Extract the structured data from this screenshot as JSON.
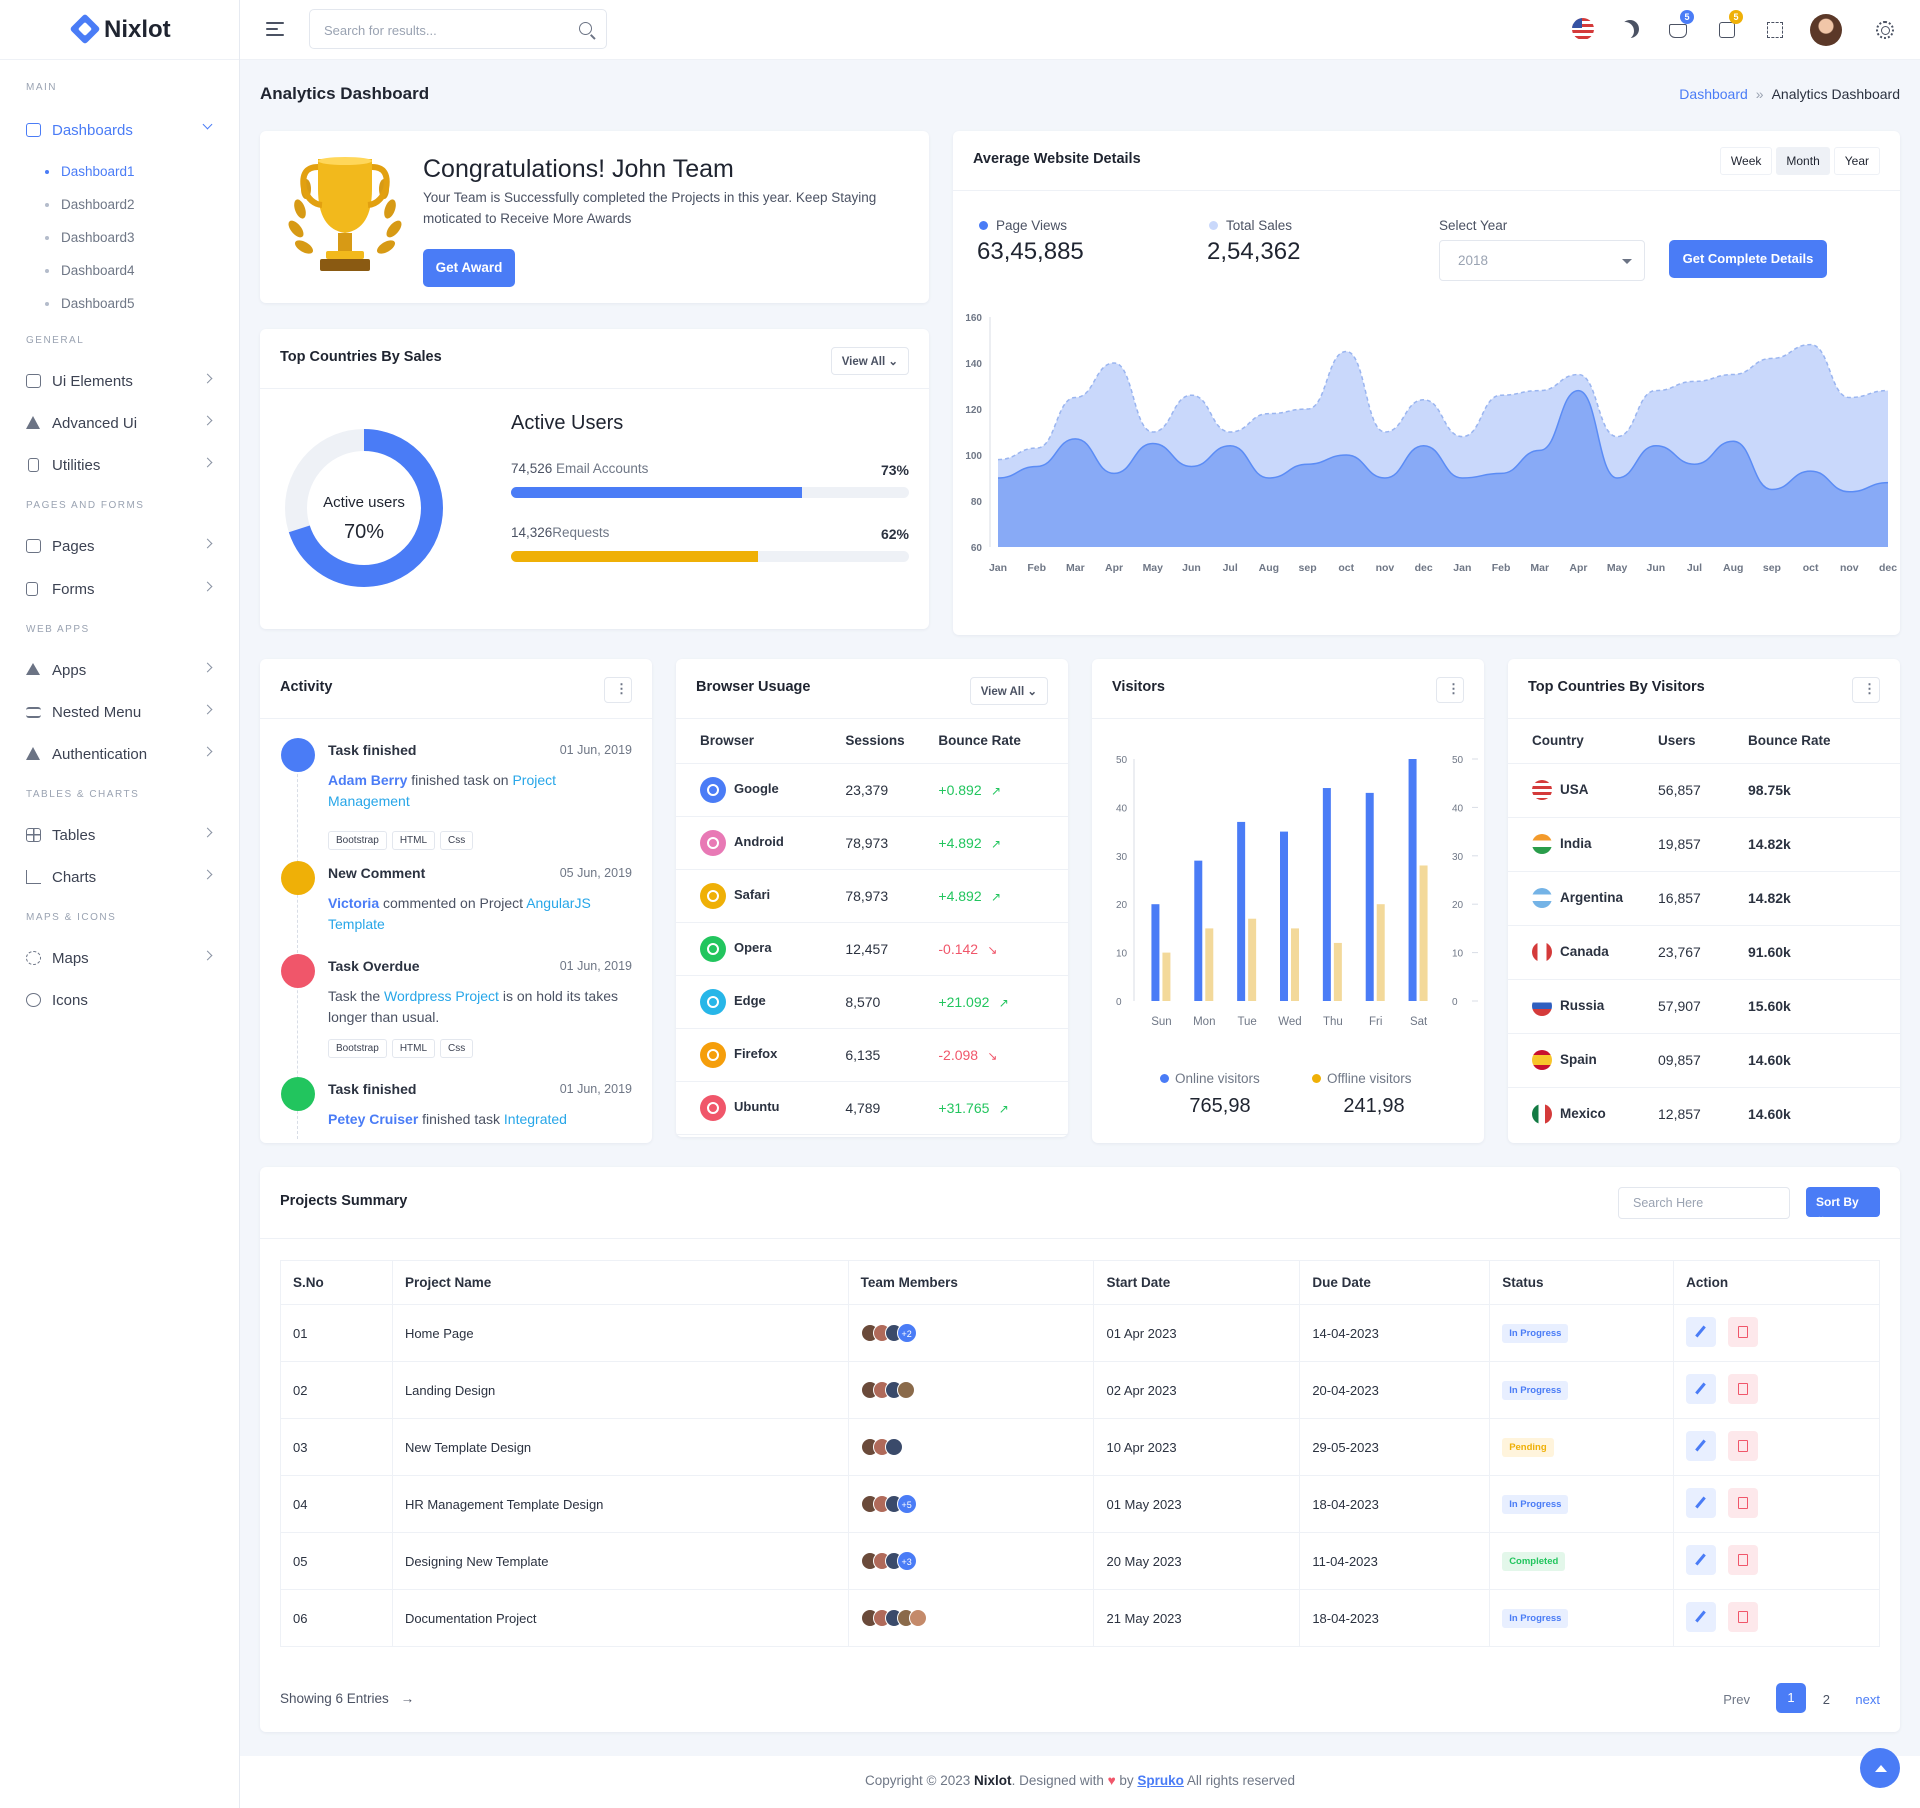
{
  "brand": {
    "name": "Nixlot"
  },
  "sidebar": {
    "categories": [
      "Main",
      "General",
      "Pages and Forms",
      "Web Apps",
      "Tables & Charts",
      "Maps & Icons"
    ],
    "dashboards_label": "Dashboards",
    "sub": [
      "Dashboard1",
      "Dashboard2",
      "Dashboard3",
      "Dashboard4",
      "Dashboard5"
    ],
    "items": [
      "Ui Elements",
      "Advanced Ui",
      "Utilities",
      "Pages",
      "Forms",
      "Apps",
      "Nested Menu",
      "Authentication",
      "Tables",
      "Charts",
      "Maps",
      "Icons"
    ]
  },
  "topbar": {
    "search_placeholder": "Search for results...",
    "badge1": "5",
    "badge2": "5"
  },
  "page": {
    "title": "Analytics Dashboard",
    "crumb_home": "Dashboard",
    "crumb_sep": "»",
    "crumb_current": "Analytics Dashboard"
  },
  "congrats": {
    "title": "Congratulations! John Team",
    "text": "Your Team is Successfully completed the Projects in this year. Keep Staying moticated to Receive More Awards",
    "button": "Get Award"
  },
  "countries_sales": {
    "title": "Top Countries By Sales",
    "view_all": "View All",
    "donut_label": "Active users",
    "donut_value": "70%",
    "donut_pct": 70,
    "heading": "Active Users",
    "rows": [
      {
        "count": "74,526",
        "label": " Email Accounts",
        "pct_text": "73%",
        "pct": 73,
        "color": "#4a7cf6"
      },
      {
        "count": "14,326",
        "label": "Requests",
        "pct_text": "62%",
        "pct": 62,
        "color": "#efb007"
      }
    ]
  },
  "avg": {
    "title": "Average Website Details",
    "tabs": [
      "Week",
      "Month",
      "Year"
    ],
    "page_views_label": "Page Views",
    "page_views": "63,45,885",
    "total_sales_label": "Total Sales",
    "total_sales": "2,54,362",
    "select_year_label": "Select Year",
    "select_year": "2018",
    "button": "Get Complete Details"
  },
  "chart_data": {
    "type": "area",
    "title": "Average Website Details",
    "x": [
      "Jan",
      "Feb",
      "Mar",
      "Apr",
      "May",
      "Jun",
      "Jul",
      "Aug",
      "sep",
      "oct",
      "nov",
      "dec",
      "Jan",
      "Feb",
      "Mar",
      "Apr",
      "May",
      "Jun",
      "Jul",
      "Aug",
      "sep",
      "oct",
      "nov",
      "dec"
    ],
    "ylim": [
      60,
      160
    ],
    "yticks": [
      60,
      80,
      100,
      120,
      140,
      160
    ],
    "series": [
      {
        "color": "#c9d8fb",
        "values": [
          98,
          103,
          125,
          140,
          110,
          126,
          110,
          118,
          120,
          145,
          110,
          124,
          108,
          126,
          128,
          135,
          108,
          128,
          132,
          135,
          142,
          148,
          125,
          128
        ]
      },
      {
        "color": "#7da2f5",
        "values": [
          90,
          95,
          107,
          92,
          105,
          95,
          104,
          90,
          96,
          100,
          90,
          104,
          90,
          92,
          102,
          128,
          90,
          104,
          96,
          106,
          85,
          93,
          84,
          88
        ]
      }
    ]
  },
  "activity": {
    "title": "Activity",
    "items": [
      {
        "title": "Task finished",
        "date": "01 Jun, 2019",
        "color": "#4a7cf6",
        "who": "Adam Berry",
        "mid": " finished task on ",
        "link": "Project Management",
        "tail": "",
        "chips": [
          "Bootstrap",
          "HTML",
          "Css"
        ]
      },
      {
        "title": "New Comment",
        "date": "05 Jun, 2019",
        "color": "#efb007",
        "who": "Victoria",
        "mid": " commented on Project ",
        "link": "AngularJS Template",
        "tail": "",
        "chips": []
      },
      {
        "title": "Task Overdue",
        "date": "01 Jun, 2019",
        "color": "#f0566a",
        "who": "",
        "mid": "Task the ",
        "link": "Wordpress Project",
        "tail": " is on hold its takes longer than usual.",
        "chips": [
          "Bootstrap",
          "HTML",
          "Css"
        ]
      },
      {
        "title": "Task finished",
        "date": "01 Jun, 2019",
        "color": "#22c55e",
        "who": "Petey Cruiser",
        "mid": " finished task ",
        "link": "Integrated",
        "tail": "",
        "chips": []
      }
    ]
  },
  "browser": {
    "title": "Browser Usuage",
    "view_all": "View All",
    "headers": [
      "Browser",
      "Sessions",
      "Bounce Rate"
    ],
    "rows": [
      {
        "name": "Google",
        "sessions": "23,379",
        "rate": "+0.892",
        "up": true,
        "color": "#4a7cf6",
        "icon": "google-icon"
      },
      {
        "name": "Android",
        "sessions": "78,973",
        "rate": "+4.892",
        "up": true,
        "color": "#e879b5",
        "icon": "android-icon"
      },
      {
        "name": "Safari",
        "sessions": "78,973",
        "rate": "+4.892",
        "up": true,
        "color": "#efb007",
        "icon": "safari-icon"
      },
      {
        "name": "Opera",
        "sessions": "12,457",
        "rate": "-0.142",
        "up": false,
        "color": "#22c55e",
        "icon": "opera-icon"
      },
      {
        "name": "Edge",
        "sessions": "8,570",
        "rate": "+21.092",
        "up": true,
        "color": "#27b6e8",
        "icon": "edge-icon"
      },
      {
        "name": "Firefox",
        "sessions": "6,135",
        "rate": "-2.098",
        "up": false,
        "color": "#f59e0b",
        "icon": "firefox-icon"
      },
      {
        "name": "Ubuntu",
        "sessions": "4,789",
        "rate": "+31.765",
        "up": true,
        "color": "#f0566a",
        "icon": "ubuntu-icon"
      }
    ]
  },
  "visitors": {
    "title": "Visitors",
    "online_label": "Online visitors",
    "online": "765,98",
    "offline_label": "Offline visitors",
    "offline": "241,98"
  },
  "visitors_chart": {
    "type": "bar",
    "categories": [
      "Sun",
      "Mon",
      "Tue",
      "Wed",
      "Thu",
      "Fri",
      "Sat"
    ],
    "ylim": [
      0,
      50
    ],
    "yticks": [
      0,
      10,
      20,
      30,
      40,
      50
    ],
    "series": [
      {
        "name": "Online visitors",
        "color": "#4a7cf6",
        "values": [
          20,
          29,
          37,
          35,
          44,
          43,
          50
        ]
      },
      {
        "name": "Offline visitors",
        "color": "#f3d99a",
        "values": [
          10,
          15,
          17,
          15,
          12,
          20,
          28
        ]
      }
    ]
  },
  "visitors_countries": {
    "title": "Top Countries By Visitors",
    "headers": [
      "Country",
      "Users",
      "Bounce Rate"
    ],
    "rows": [
      {
        "name": "USA",
        "users": "56,857",
        "rate": "98.75k",
        "flag": "us"
      },
      {
        "name": "India",
        "users": "19,857",
        "rate": "14.82k",
        "flag": "in"
      },
      {
        "name": "Argentina",
        "users": "16,857",
        "rate": "14.82k",
        "flag": "ar"
      },
      {
        "name": "Canada",
        "users": "23,767",
        "rate": "91.60k",
        "flag": "ca"
      },
      {
        "name": "Russia",
        "users": "57,907",
        "rate": "15.60k",
        "flag": "ru"
      },
      {
        "name": "Spain",
        "users": "09,857",
        "rate": "14.60k",
        "flag": "es"
      },
      {
        "name": "Mexico",
        "users": "12,857",
        "rate": "14.60k",
        "flag": "mx"
      }
    ]
  },
  "projects": {
    "title": "Projects Summary",
    "search_placeholder": "Search Here",
    "sort_label": "Sort By",
    "headers": [
      "S.No",
      "Project Name",
      "Team Members",
      "Start Date",
      "Due Date",
      "Status",
      "Action"
    ],
    "rows": [
      {
        "no": "01",
        "name": "Home Page",
        "avatars": 3,
        "extra": "+2",
        "start": "01 Apr 2023",
        "due": "14-04-2023",
        "status": "In Progress"
      },
      {
        "no": "02",
        "name": "Landing Design",
        "avatars": 4,
        "extra": "",
        "start": "02 Apr 2023",
        "due": "20-04-2023",
        "status": "In Progress"
      },
      {
        "no": "03",
        "name": "New Template Design",
        "avatars": 3,
        "extra": "",
        "start": "10 Apr 2023",
        "due": "29-05-2023",
        "status": "Pending"
      },
      {
        "no": "04",
        "name": "HR Management Template Design",
        "avatars": 3,
        "extra": "+5",
        "start": "01 May 2023",
        "due": "18-04-2023",
        "status": "In Progress"
      },
      {
        "no": "05",
        "name": "Designing New Template",
        "avatars": 3,
        "extra": "+3",
        "start": "20 May 2023",
        "due": "11-04-2023",
        "status": "Completed"
      },
      {
        "no": "06",
        "name": "Documentation Project",
        "avatars": 5,
        "extra": "",
        "start": "21 May 2023",
        "due": "18-04-2023",
        "status": "In Progress"
      }
    ],
    "showing": "Showing 6 Entries",
    "prev": "Prev",
    "pages": [
      "1",
      "2"
    ],
    "next": "next"
  },
  "footer": {
    "pre": "Copyright © 2023 ",
    "brand": "Nixlot",
    "mid": ". Designed with ",
    "by": " by ",
    "author": "Spruko",
    "post": " All rights reserved"
  },
  "colors": {
    "primary": "#4a7cf6",
    "warning": "#efb007",
    "success": "#22c55e",
    "danger": "#f0566a"
  }
}
